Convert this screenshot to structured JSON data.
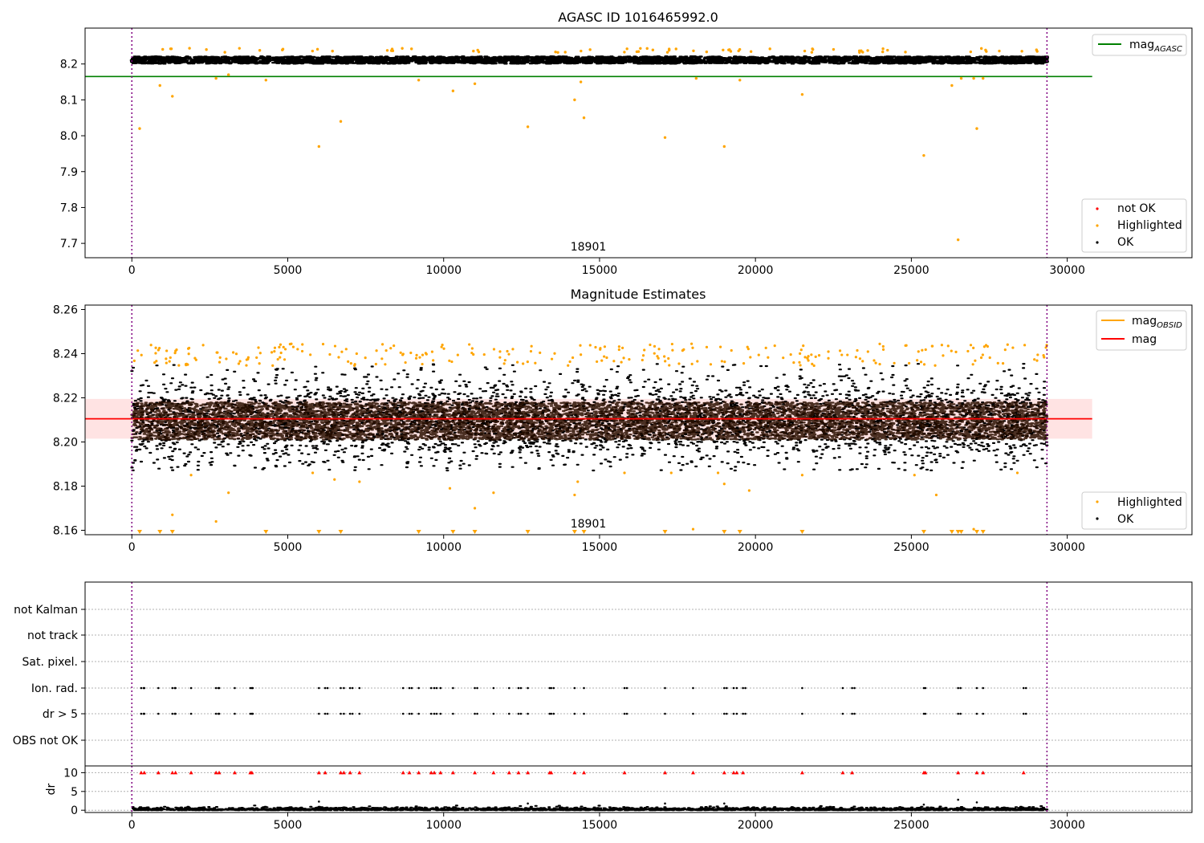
{
  "chart_data": [
    {
      "type": "scatter",
      "title": "AGASC ID 1016465992.0",
      "xlim": [
        -1500,
        34000
      ],
      "ylim": [
        7.66,
        8.3
      ],
      "xticks": [
        0,
        5000,
        10000,
        15000,
        20000,
        25000,
        30000
      ],
      "yticks": [
        7.7,
        7.8,
        7.9,
        8.0,
        8.1,
        8.2
      ],
      "ytick_labels": [
        "7.7",
        "7.8",
        "7.9",
        "8.0",
        "8.1",
        "8.2"
      ],
      "obsid_label": "18901",
      "obsid_bounds": [
        0,
        29350
      ],
      "obs_boundary_color": "#800080",
      "reference_line": {
        "value": 8.165,
        "x_range": [
          -1500,
          30800
        ],
        "color": "#008000"
      },
      "ok_band": {
        "center": 8.211,
        "half_width": 0.01
      },
      "legend_lines": [
        {
          "label": "mag",
          "sub": "AGASC",
          "color": "#008000"
        }
      ],
      "legend_markers": [
        {
          "label": "not OK",
          "color": "#ff0000"
        },
        {
          "label": "Highlighted",
          "color": "#ffa500"
        },
        {
          "label": "OK",
          "color": "#000000"
        }
      ],
      "highlighted": [
        [
          250,
          8.02
        ],
        [
          900,
          8.14
        ],
        [
          1300,
          8.11
        ],
        [
          2700,
          8.16
        ],
        [
          3100,
          8.17
        ],
        [
          4300,
          8.155
        ],
        [
          6000,
          7.97
        ],
        [
          6700,
          8.04
        ],
        [
          9200,
          8.155
        ],
        [
          10300,
          8.125
        ],
        [
          11000,
          8.145
        ],
        [
          12700,
          8.025
        ],
        [
          14200,
          8.1
        ],
        [
          14400,
          8.15
        ],
        [
          14500,
          8.05
        ],
        [
          17100,
          7.995
        ],
        [
          18100,
          8.16
        ],
        [
          19000,
          7.97
        ],
        [
          19500,
          8.155
        ],
        [
          21500,
          8.115
        ],
        [
          25400,
          7.945
        ],
        [
          26300,
          8.14
        ],
        [
          26500,
          7.71
        ],
        [
          26600,
          8.16
        ],
        [
          27000,
          8.16
        ],
        [
          27100,
          8.02
        ],
        [
          27300,
          8.16
        ]
      ]
    },
    {
      "type": "scatter",
      "title": "Magnitude Estimates",
      "xlim": [
        -1500,
        34000
      ],
      "ylim": [
        8.158,
        8.262
      ],
      "xticks": [
        0,
        5000,
        10000,
        15000,
        20000,
        25000,
        30000
      ],
      "yticks": [
        8.16,
        8.18,
        8.2,
        8.22,
        8.24,
        8.26
      ],
      "ytick_labels": [
        "8.16",
        "8.18",
        "8.20",
        "8.22",
        "8.24",
        "8.26"
      ],
      "obsid_label": "18901",
      "obsid_bounds": [
        0,
        29350
      ],
      "mean_line": {
        "value": 8.2105,
        "x_range": [
          -1500,
          30800
        ],
        "color": "#ff0000"
      },
      "obsid_mag": {
        "value": 8.2105,
        "color": "#ffa500"
      },
      "band": {
        "low": 8.2015,
        "high": 8.2195,
        "x_range": [
          -1500,
          30800
        ],
        "color": "#ffcccc"
      },
      "legend_lines": [
        {
          "label": "mag",
          "sub": "OBSID",
          "color": "#ffa500"
        },
        {
          "label": "mag",
          "sub": "",
          "color": "#ff0000"
        }
      ],
      "legend_markers": [
        {
          "label": "Highlighted",
          "color": "#ffa500"
        },
        {
          "label": "OK",
          "color": "#000000"
        }
      ],
      "highlighted_low": [
        [
          1900,
          8.185
        ],
        [
          2700,
          8.164
        ],
        [
          3100,
          8.177
        ],
        [
          1300,
          8.167
        ],
        [
          5800,
          8.186
        ],
        [
          6500,
          8.183
        ],
        [
          7300,
          8.182
        ],
        [
          10200,
          8.179
        ],
        [
          11000,
          8.17
        ],
        [
          11600,
          8.177
        ],
        [
          14300,
          8.182
        ],
        [
          14200,
          8.176
        ],
        [
          15800,
          8.186
        ],
        [
          17300,
          8.186
        ],
        [
          18800,
          8.186
        ],
        [
          19000,
          8.181
        ],
        [
          19800,
          8.178
        ],
        [
          21500,
          8.185
        ],
        [
          25100,
          8.185
        ],
        [
          25800,
          8.176
        ],
        [
          28400,
          8.186
        ],
        [
          18000,
          8.1605
        ],
        [
          27000,
          8.1605
        ]
      ],
      "offscale_low_x": [
        250,
        900,
        1300,
        4300,
        6000,
        6700,
        9200,
        10300,
        11000,
        12700,
        14200,
        14500,
        17100,
        19000,
        19500,
        21500,
        25400,
        26300,
        26500,
        26600,
        27100,
        27300
      ]
    },
    {
      "type": "scatter",
      "xlim": [
        -1500,
        34000
      ],
      "xticks": [
        0,
        5000,
        10000,
        15000,
        20000,
        25000,
        30000
      ],
      "flag_labels": [
        "not Kalman",
        "not track",
        "Sat. pixel.",
        "Ion. rad.",
        "dr > 5",
        "OBS not OK"
      ],
      "flag_events_x": [
        300,
        400,
        850,
        1300,
        1400,
        1900,
        2700,
        2800,
        3300,
        3800,
        3850,
        6000,
        6200,
        6700,
        6800,
        7000,
        7300,
        8700,
        8900,
        9200,
        9600,
        9700,
        9900,
        10300,
        11000,
        11600,
        12100,
        12400,
        12700,
        13400,
        13450,
        14200,
        14500,
        15800,
        17100,
        18000,
        19000,
        19300,
        19400,
        19600,
        21500,
        22800,
        23100,
        25400,
        25450,
        26500,
        27100,
        27300,
        28600
      ],
      "dr_label": "dr",
      "dr_ylim": [
        -0.6,
        11.8
      ],
      "dr_yticks": [
        0,
        5,
        10
      ],
      "dr_ytick_labels": [
        "0",
        "5",
        "10"
      ],
      "dr_spikes": [
        [
          6000,
          2.3
        ],
        [
          12700,
          1.8
        ],
        [
          17100,
          1.8
        ],
        [
          19000,
          1.8
        ],
        [
          25400,
          1.5
        ],
        [
          26500,
          2.8
        ],
        [
          27100,
          2.1
        ]
      ]
    }
  ]
}
